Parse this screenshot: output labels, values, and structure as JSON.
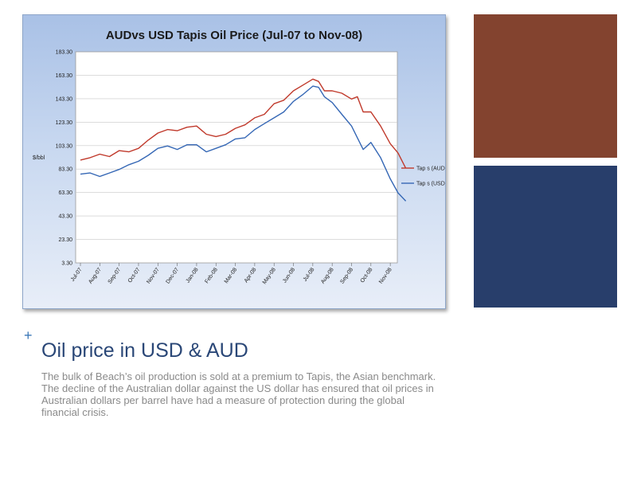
{
  "slide": {
    "title": "Oil price in USD & AUD",
    "body": "The bulk of Beach’s oil production is sold at a premium to Tapis, the Asian benchmark. The decline of the Australian dollar against the US dollar has ensured that oil prices in Australian dollars per barrel have had a measure of protection during the global financial crisis.",
    "bullet": "+"
  },
  "colors": {
    "brown_block": "#83432f",
    "navy_block": "#283e6b",
    "aud_line": "#c0392b",
    "usd_line": "#3567b5"
  },
  "chart_data": {
    "type": "line",
    "title": "AUDvs USD Tapis Oil Price (Jul-07 to Nov-08)",
    "ylabel": "$/bbl",
    "xlabel": "",
    "ylim": [
      3.3,
      183.3
    ],
    "yticks": [
      "183.30",
      "163.30",
      "143.30",
      "123.30",
      "103.30",
      "83.30",
      "63.30",
      "43.30",
      "23.30",
      "3.30"
    ],
    "categories": [
      "Jul-07",
      "Aug-07",
      "Sep-07",
      "Oct-07",
      "Nov-07",
      "Dec-07",
      "Jan-08",
      "Feb-08",
      "Mar-08",
      "Apr-08",
      "May-08",
      "Jun-08",
      "Jul-08",
      "Aug-08",
      "Sep-08",
      "Oct-08",
      "Nov-08"
    ],
    "legend_position": "right",
    "grid": true,
    "series": [
      {
        "name": "Tap s (AUD)",
        "color": "#c0392b",
        "x": [
          0,
          0.5,
          1,
          1.5,
          2,
          2.5,
          3,
          3.5,
          4,
          4.5,
          5,
          5.5,
          6,
          6.5,
          7,
          7.5,
          8,
          8.5,
          9,
          9.5,
          10,
          10.5,
          11,
          11.5,
          12,
          12.3,
          12.6,
          13,
          13.5,
          14,
          14.3,
          14.6,
          15,
          15.5,
          16,
          16.4,
          16.8
        ],
        "values": [
          91,
          93,
          96,
          94,
          99,
          98,
          101,
          108,
          114,
          117,
          116,
          119,
          120,
          113,
          111,
          113,
          118,
          121,
          127,
          130,
          139,
          142,
          150,
          155,
          160,
          158,
          150,
          150,
          148,
          143,
          145,
          132,
          132,
          120,
          105,
          97,
          84
        ]
      },
      {
        "name": "Tap s (USD)",
        "color": "#3567b5",
        "x": [
          0,
          0.5,
          1,
          1.5,
          2,
          2.5,
          3,
          3.5,
          4,
          4.5,
          5,
          5.5,
          6,
          6.5,
          7,
          7.5,
          8,
          8.5,
          9,
          9.5,
          10,
          10.5,
          11,
          11.5,
          12,
          12.3,
          12.6,
          13,
          13.5,
          14,
          14.3,
          14.6,
          15,
          15.5,
          16,
          16.4,
          16.8
        ],
        "values": [
          79,
          80,
          77,
          80,
          83,
          87,
          90,
          95,
          101,
          103,
          100,
          104,
          104,
          98,
          101,
          104,
          109,
          110,
          117,
          122,
          127,
          132,
          141,
          147,
          154,
          153,
          145,
          140,
          130,
          120,
          110,
          100,
          106,
          93,
          75,
          63,
          56
        ]
      }
    ]
  }
}
